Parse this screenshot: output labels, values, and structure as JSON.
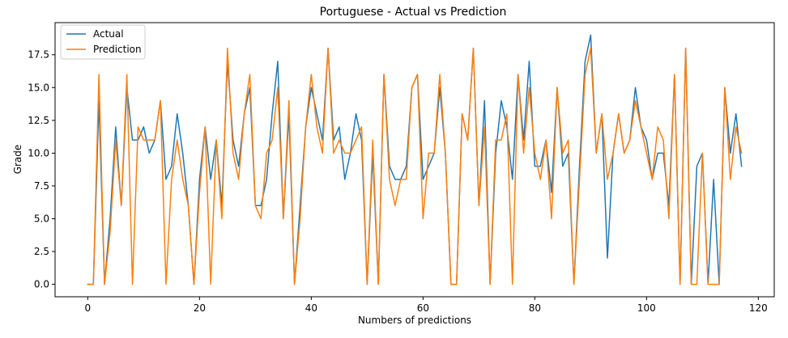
{
  "chart_data": {
    "type": "line",
    "title": "Portuguese - Actual vs Prediction",
    "xlabel": "Numbers of predictions",
    "ylabel": "Grade",
    "xlim": [
      -5.85,
      122.85
    ],
    "ylim": [
      -0.95,
      19.95
    ],
    "xticks": [
      0,
      20,
      40,
      60,
      80,
      100,
      120
    ],
    "xtick_labels": [
      "0",
      "20",
      "40",
      "60",
      "80",
      "100",
      "120"
    ],
    "yticks": [
      0,
      2.5,
      5,
      7.5,
      10,
      12.5,
      15,
      17.5
    ],
    "ytick_labels": [
      "0.0",
      "2.5",
      "5.0",
      "7.5",
      "10.0",
      "12.5",
      "15.0",
      "17.5"
    ],
    "grid": false,
    "legend": "top-left",
    "series": [
      {
        "name": "Actual",
        "color": "#1f77b4",
        "values": [
          0,
          0,
          14,
          0,
          5,
          12,
          6,
          15,
          11,
          11,
          12,
          10,
          11,
          14,
          8,
          9,
          13,
          10,
          6,
          0,
          8,
          12,
          8,
          11,
          6,
          17,
          11,
          9,
          13,
          15,
          6,
          6,
          8,
          13,
          17,
          5,
          13,
          0,
          6,
          12,
          15,
          13,
          11,
          18,
          11,
          12,
          8,
          10,
          13,
          11,
          0,
          10,
          0,
          16,
          9,
          8,
          8,
          9,
          15,
          16,
          8,
          9,
          10,
          15,
          10,
          0,
          0,
          13,
          11,
          18,
          6,
          14,
          0,
          10,
          14,
          12,
          8,
          16,
          11,
          17,
          9,
          9,
          11,
          7,
          15,
          9,
          10,
          0,
          9,
          17,
          19,
          10,
          13,
          2,
          10,
          13,
          10,
          11,
          15,
          12,
          11,
          8,
          10,
          10,
          6,
          16,
          0,
          18,
          0,
          9,
          10,
          0,
          8,
          0,
          15,
          10,
          13,
          9
        ]
      },
      {
        "name": "Prediction",
        "color": "#ff7f0e",
        "values": [
          0,
          0,
          16,
          0,
          4,
          11,
          6,
          16,
          0,
          12,
          11,
          11,
          11,
          14,
          0,
          8,
          11,
          8,
          6,
          0,
          7,
          12,
          0,
          11,
          5,
          18,
          10,
          8,
          13,
          16,
          6,
          5,
          10,
          11,
          15,
          5,
          14,
          0,
          5,
          12,
          16,
          12,
          10,
          18,
          10,
          11,
          10,
          10,
          11,
          12,
          0,
          11,
          0,
          16,
          8,
          6,
          8,
          8,
          15,
          16,
          5,
          10,
          10,
          16,
          10,
          0,
          0,
          13,
          11,
          18,
          6,
          12,
          0,
          11,
          11,
          13,
          0,
          16,
          10,
          15,
          10,
          8,
          11,
          5,
          15,
          10,
          11,
          0,
          8,
          16,
          18,
          10,
          13,
          8,
          10,
          13,
          10,
          11,
          14,
          12,
          10,
          8,
          12,
          11,
          5,
          16,
          0,
          18,
          0,
          0,
          10,
          0,
          0,
          0,
          15,
          8,
          12,
          10
        ]
      }
    ]
  }
}
